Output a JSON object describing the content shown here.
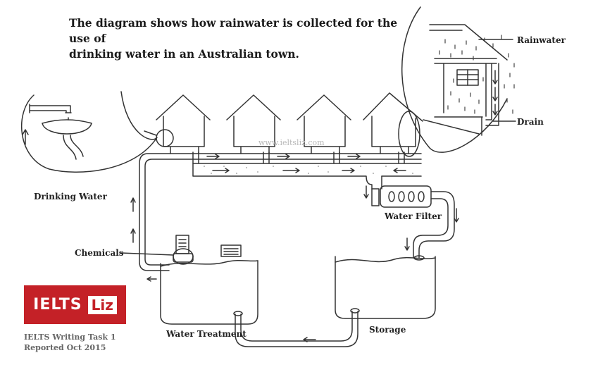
{
  "title_line1": "The diagram shows how rainwater is collected for the use of",
  "title_line2": "drinking water in an Australian town.",
  "labels": {
    "rainwater": "Rainwater",
    "drain": "Drain",
    "drinking_water": "Drinking Water",
    "water_filter": "Water Filter",
    "chemicals": "Chemicals",
    "water_treatment": "Water Treatment",
    "storage": "Storage"
  },
  "watermark": "www.ieltsliz.com",
  "logo": {
    "part1": "IELTS",
    "part2": "Liz",
    "color": "#c42127"
  },
  "footer": {
    "line1": "IELTS Writing Task 1",
    "line2": "Reported Oct 2015"
  }
}
